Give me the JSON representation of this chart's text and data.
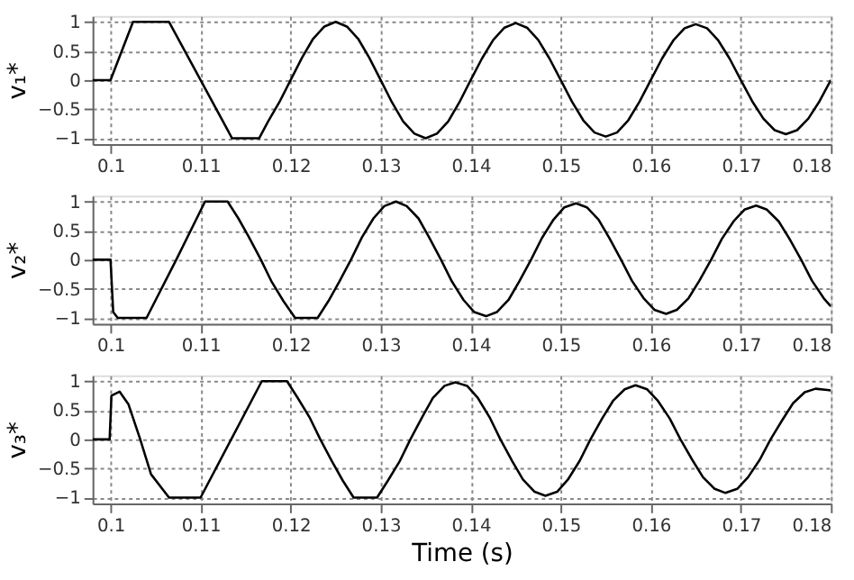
{
  "chart_data": [
    {
      "type": "line",
      "ylabel": "v₁*",
      "xlim": [
        0.098,
        0.18
      ],
      "ylim": [
        -1.1,
        1.1
      ],
      "xticks": [
        0.1,
        0.11,
        0.12,
        0.13,
        0.14,
        0.15,
        0.16,
        0.17,
        0.18
      ],
      "yticks": [
        -1,
        -0.5,
        0,
        0.5,
        1
      ],
      "grid": true,
      "series": [
        {
          "color": "#000000",
          "x": [
            0.098,
            0.1,
            0.1025,
            0.1065,
            0.11,
            0.1135,
            0.1165,
            0.1175,
            0.11875,
            0.12,
            0.12125,
            0.1225,
            0.12375,
            0.125,
            0.12625,
            0.1275,
            0.12875,
            0.13,
            0.13125,
            0.1325,
            0.13375,
            0.135,
            0.13625,
            0.1375,
            0.13875,
            0.14,
            0.14125,
            0.1425,
            0.14375,
            0.145,
            0.14625,
            0.1475,
            0.14875,
            0.15,
            0.15125,
            0.1525,
            0.15375,
            0.155,
            0.15625,
            0.1575,
            0.15875,
            0.16,
            0.16125,
            0.1625,
            0.16375,
            0.165,
            0.16625,
            0.1675,
            0.16875,
            0.17,
            0.17125,
            0.1725,
            0.17375,
            0.175,
            0.17625,
            0.1775,
            0.17875,
            0.18
          ],
          "values": [
            0,
            0,
            1,
            1,
            0,
            -1,
            -1,
            -0.71,
            -0.38,
            0,
            0.38,
            0.71,
            0.92,
            1,
            0.92,
            0.71,
            0.38,
            0,
            -0.38,
            -0.71,
            -0.92,
            -1,
            -0.92,
            -0.71,
            -0.38,
            0,
            0.37,
            0.69,
            0.9,
            0.98,
            0.9,
            0.69,
            0.37,
            0,
            -0.37,
            -0.69,
            -0.9,
            -0.97,
            -0.9,
            -0.69,
            -0.37,
            0,
            0.37,
            0.68,
            0.89,
            0.96,
            0.89,
            0.68,
            0.37,
            0,
            -0.36,
            -0.66,
            -0.86,
            -0.93,
            -0.86,
            -0.66,
            -0.36,
            0
          ]
        }
      ]
    },
    {
      "type": "line",
      "ylabel": "v₂*",
      "xlim": [
        0.098,
        0.18
      ],
      "ylim": [
        -1.1,
        1.1
      ],
      "xticks": [
        0.1,
        0.11,
        0.12,
        0.13,
        0.14,
        0.15,
        0.16,
        0.17,
        0.18
      ],
      "yticks": [
        -1,
        -0.5,
        0,
        0.5,
        1
      ],
      "grid": true,
      "series": [
        {
          "color": "#000000",
          "x": [
            0.098,
            0.1,
            0.1003,
            0.1008,
            0.104,
            0.1073,
            0.1105,
            0.113,
            0.1142,
            0.1154,
            0.1167,
            0.1179,
            0.1192,
            0.1205,
            0.123,
            0.1242,
            0.1254,
            0.1267,
            0.1279,
            0.1292,
            0.1304,
            0.1317,
            0.1329,
            0.1342,
            0.1354,
            0.1367,
            0.1379,
            0.1392,
            0.1404,
            0.1417,
            0.1429,
            0.1442,
            0.1454,
            0.1467,
            0.1479,
            0.1492,
            0.1504,
            0.1517,
            0.1529,
            0.1542,
            0.1554,
            0.1567,
            0.1579,
            0.1592,
            0.1604,
            0.1617,
            0.1629,
            0.1642,
            0.1654,
            0.1667,
            0.1679,
            0.1692,
            0.1704,
            0.1717,
            0.1729,
            0.1742,
            0.1754,
            0.1767,
            0.1779,
            0.1792,
            0.18
          ],
          "values": [
            0,
            0,
            -0.9,
            -1,
            -1,
            0,
            1,
            1,
            0.71,
            0.38,
            0,
            -0.38,
            -0.71,
            -1,
            -1,
            -0.71,
            -0.38,
            0,
            0.38,
            0.71,
            0.92,
            1,
            0.92,
            0.71,
            0.38,
            0,
            -0.37,
            -0.69,
            -0.9,
            -0.97,
            -0.9,
            -0.69,
            -0.37,
            0,
            0.37,
            0.69,
            0.9,
            0.97,
            0.9,
            0.69,
            0.37,
            0,
            -0.36,
            -0.66,
            -0.86,
            -0.93,
            -0.86,
            -0.66,
            -0.36,
            0,
            0.36,
            0.66,
            0.86,
            0.93,
            0.86,
            0.66,
            0.36,
            0,
            -0.36,
            -0.66,
            -0.8
          ]
        }
      ]
    },
    {
      "type": "line",
      "ylabel": "v₃*",
      "xlabel": "Time (s)",
      "xlim": [
        0.098,
        0.18
      ],
      "ylim": [
        -1.1,
        1.1
      ],
      "xticks": [
        0.1,
        0.11,
        0.12,
        0.13,
        0.14,
        0.15,
        0.16,
        0.17,
        0.18
      ],
      "yticks": [
        -1,
        -0.5,
        0,
        0.5,
        1
      ],
      "grid": true,
      "series": [
        {
          "color": "#000000",
          "x": [
            0.098,
            0.0999,
            0.1001,
            0.101,
            0.102,
            0.1033,
            0.1045,
            0.1065,
            0.11,
            0.1134,
            0.1168,
            0.1196,
            0.1208,
            0.1221,
            0.1233,
            0.1246,
            0.1258,
            0.127,
            0.1296,
            0.1308,
            0.1321,
            0.1333,
            0.1346,
            0.1358,
            0.1371,
            0.1383,
            0.1396,
            0.1408,
            0.1421,
            0.1433,
            0.1446,
            0.1458,
            0.1471,
            0.1483,
            0.1496,
            0.1508,
            0.1521,
            0.1533,
            0.1546,
            0.1558,
            0.1571,
            0.1583,
            0.1596,
            0.1608,
            0.1621,
            0.1633,
            0.1646,
            0.1658,
            0.1671,
            0.1683,
            0.1696,
            0.1708,
            0.1721,
            0.1733,
            0.1746,
            0.1758,
            0.1771,
            0.1783,
            0.1796,
            0.18
          ],
          "values": [
            0,
            0,
            0.75,
            0.82,
            0.6,
            0,
            -0.6,
            -1,
            -1,
            0,
            1,
            1,
            0.71,
            0.38,
            0,
            -0.38,
            -0.71,
            -1,
            -1,
            -0.71,
            -0.38,
            0,
            0.38,
            0.71,
            0.92,
            0.98,
            0.92,
            0.71,
            0.38,
            0,
            -0.37,
            -0.69,
            -0.9,
            -0.97,
            -0.9,
            -0.69,
            -0.37,
            0,
            0.36,
            0.66,
            0.86,
            0.93,
            0.86,
            0.66,
            0.36,
            0,
            -0.35,
            -0.65,
            -0.85,
            -0.92,
            -0.85,
            -0.65,
            -0.35,
            0,
            0.33,
            0.62,
            0.81,
            0.87,
            0.85,
            0.84
          ]
        }
      ]
    }
  ]
}
